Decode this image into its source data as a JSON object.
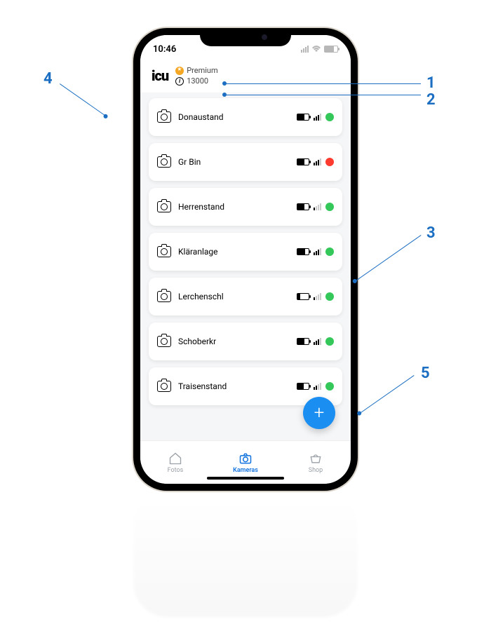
{
  "statusbar": {
    "time": "10:46"
  },
  "header": {
    "logo": "icu",
    "premium_label": "Premium",
    "credits_value": "13000"
  },
  "colors": {
    "accent": "#1273de",
    "fab": "#1b8ef2",
    "status_green": "#34c759",
    "status_red": "#ff3b30",
    "callout": "#1b6ec2"
  },
  "cameras": [
    {
      "name": "Donaustand",
      "battery_pct": 60,
      "signal_bars": 3,
      "status": "green"
    },
    {
      "name": "Gr Bin",
      "battery_pct": 60,
      "signal_bars": 3,
      "status": "red"
    },
    {
      "name": "Herrenstand",
      "battery_pct": 60,
      "signal_bars": 1,
      "status": "green"
    },
    {
      "name": "Kläranlage",
      "battery_pct": 70,
      "signal_bars": 3,
      "status": "green"
    },
    {
      "name": "Lerchenschl",
      "battery_pct": 25,
      "signal_bars": 1,
      "status": "green"
    },
    {
      "name": "Schoberkr",
      "battery_pct": 65,
      "signal_bars": 3,
      "status": "green"
    },
    {
      "name": "Traisenstand",
      "battery_pct": 55,
      "signal_bars": 2,
      "status": "green"
    }
  ],
  "bottomnav": {
    "items": [
      {
        "label": "Fotos",
        "active": false
      },
      {
        "label": "Kameras",
        "active": true
      },
      {
        "label": "Shop",
        "active": false
      }
    ]
  },
  "callouts": [
    {
      "num": "1",
      "target": "premium-row"
    },
    {
      "num": "2",
      "target": "credits-row"
    },
    {
      "num": "3",
      "target": "camera-status-lerchenschl"
    },
    {
      "num": "4",
      "target": "camera-name-donaustand"
    },
    {
      "num": "5",
      "target": "fab"
    }
  ]
}
